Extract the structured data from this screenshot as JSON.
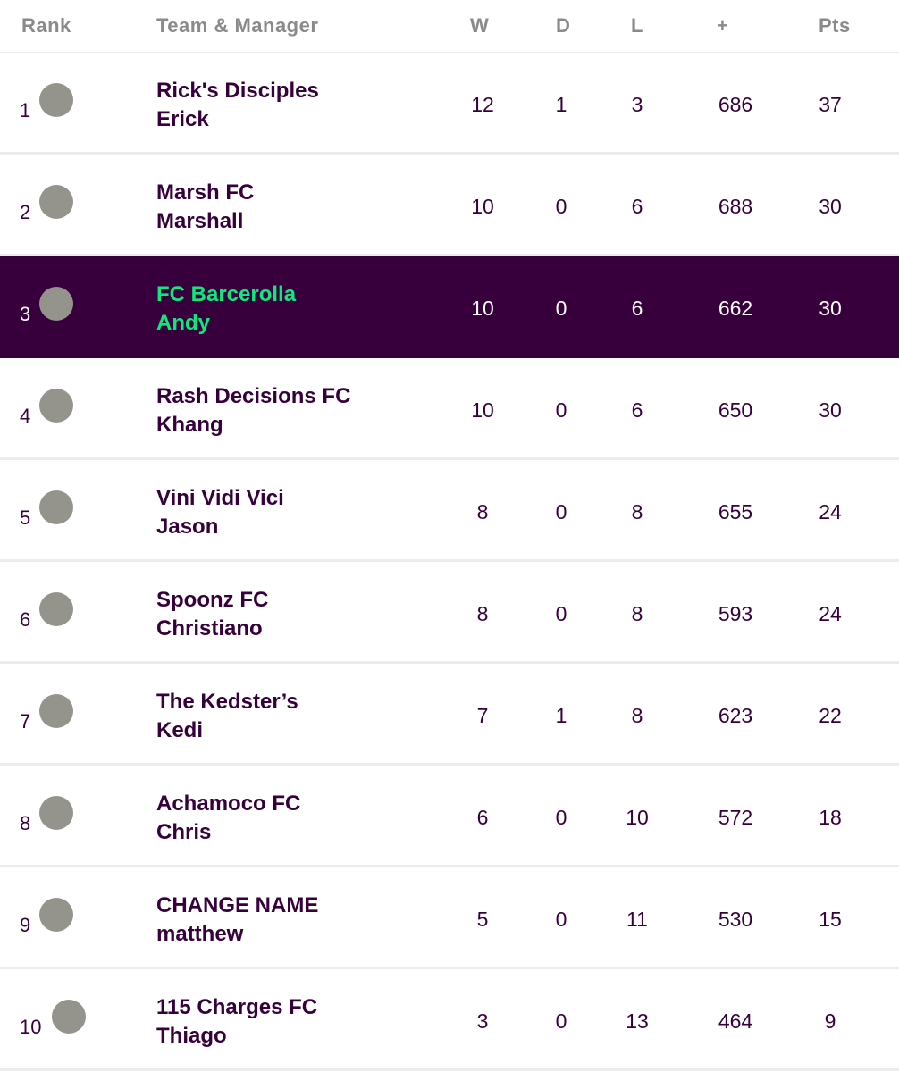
{
  "header": {
    "rank": "Rank",
    "team_manager": "Team & Manager",
    "w": "W",
    "d": "D",
    "l": "L",
    "plus": "+",
    "pts": "Pts"
  },
  "colors": {
    "primary": "#37003c",
    "highlight_text": "#0fe87c",
    "avatar": "#94948d",
    "header_text": "#8a8a8a"
  },
  "rows": [
    {
      "rank": "1",
      "team": "Rick's Disciples",
      "manager": "Erick",
      "w": "12",
      "d": "1",
      "l": "3",
      "plus": "686",
      "pts": "37"
    },
    {
      "rank": "2",
      "team": "Marsh FC",
      "manager": "Marshall",
      "w": "10",
      "d": "0",
      "l": "6",
      "plus": "688",
      "pts": "30"
    },
    {
      "rank": "3",
      "team": "FC Barcerolla",
      "manager": "Andy",
      "w": "10",
      "d": "0",
      "l": "6",
      "plus": "662",
      "pts": "30",
      "highlighted": true
    },
    {
      "rank": "4",
      "team": "Rash Decisions FC",
      "manager": "Khang",
      "w": "10",
      "d": "0",
      "l": "6",
      "plus": "650",
      "pts": "30"
    },
    {
      "rank": "5",
      "team": "Vini Vidi Vici",
      "manager": "Jason",
      "w": "8",
      "d": "0",
      "l": "8",
      "plus": "655",
      "pts": "24"
    },
    {
      "rank": "6",
      "team": "Spoonz FC",
      "manager": "Christiano",
      "w": "8",
      "d": "0",
      "l": "8",
      "plus": "593",
      "pts": "24"
    },
    {
      "rank": "7",
      "team": "The Kedster’s",
      "manager": "Kedi",
      "w": "7",
      "d": "1",
      "l": "8",
      "plus": "623",
      "pts": "22"
    },
    {
      "rank": "8",
      "team": "Achamoco FC",
      "manager": "Chris",
      "w": "6",
      "d": "0",
      "l": "10",
      "plus": "572",
      "pts": "18"
    },
    {
      "rank": "9",
      "team": "CHANGE NAME",
      "manager": "matthew",
      "w": "5",
      "d": "0",
      "l": "11",
      "plus": "530",
      "pts": "15"
    },
    {
      "rank": "10",
      "team": "115 Charges FC",
      "manager": "Thiago",
      "w": "3",
      "d": "0",
      "l": "13",
      "plus": "464",
      "pts": "9"
    }
  ]
}
